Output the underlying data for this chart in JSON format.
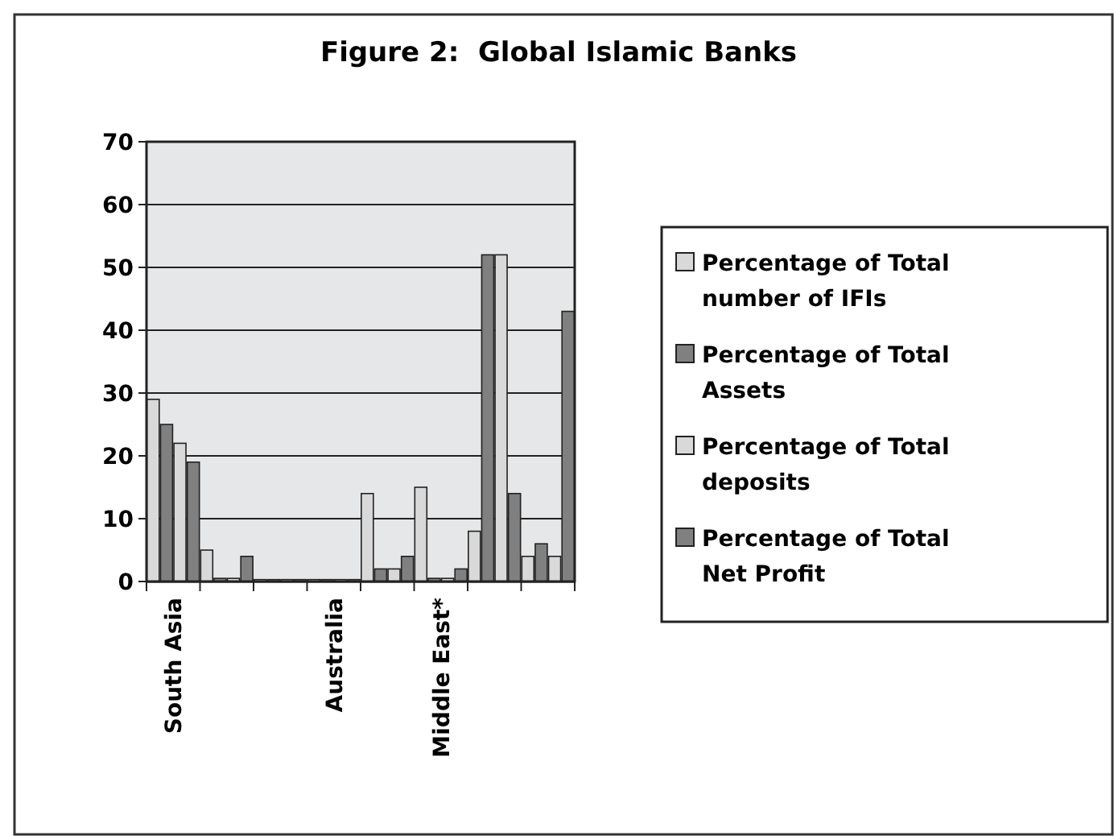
{
  "chart_data": {
    "type": "bar",
    "title": "Figure 2:  Global Islamic Banks",
    "categories": [
      "South Asia",
      null,
      null,
      "Australia",
      null,
      "Middle East*",
      null,
      null
    ],
    "series": [
      {
        "name": "Percentage of Total number of IFIs",
        "color": "#d9d9d9",
        "values": [
          29,
          5,
          0.3,
          0.3,
          14,
          15,
          8,
          4
        ]
      },
      {
        "name": "Percentage of Total Assets",
        "color": "#808080",
        "values": [
          25,
          0.5,
          0.3,
          0.3,
          2,
          0.5,
          52,
          6
        ]
      },
      {
        "name": "Percentage of Total deposits",
        "color": "#d9d9d9",
        "values": [
          22,
          0.5,
          0.3,
          0.3,
          2,
          0.5,
          52,
          4
        ]
      },
      {
        "name": "Percentage of Total Net Profit",
        "color": "#808080",
        "values": [
          19,
          4,
          0.3,
          0.3,
          4,
          2,
          14,
          43
        ]
      }
    ],
    "ylim": [
      0,
      70
    ],
    "yticks": [
      0,
      10,
      20,
      30,
      40,
      50,
      60,
      70
    ],
    "grid": "y",
    "legend": "right"
  }
}
